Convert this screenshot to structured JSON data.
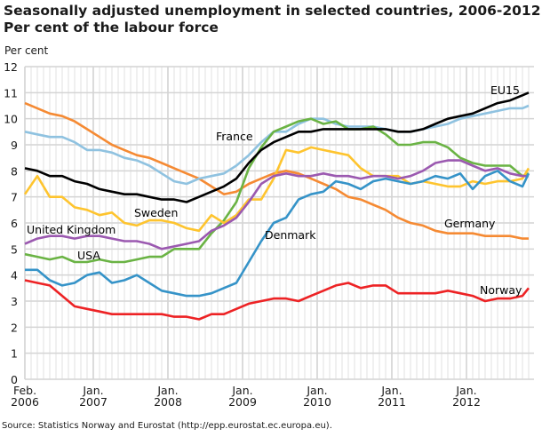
{
  "chart_data": {
    "type": "line",
    "title": "Seasonally adjusted unemployment in selected countries, 2006-2012.",
    "subtitle": "Per cent of the labour force",
    "ylabel": "Per cent",
    "xlabel": "",
    "ylim": [
      0,
      12
    ],
    "yticks": [
      "0",
      "1",
      "2",
      "3",
      "4",
      "5",
      "6",
      "7",
      "8",
      "9",
      "10",
      "11",
      "12"
    ],
    "xticks": [
      {
        "line1": "Feb.",
        "line2": "2006",
        "month": 0
      },
      {
        "line1": "Jan.",
        "line2": "2007",
        "month": 11
      },
      {
        "line1": "Jan.",
        "line2": "2008",
        "month": 23
      },
      {
        "line1": "Jan.",
        "line2": "2009",
        "month": 35
      },
      {
        "line1": "Jan.",
        "line2": "2010",
        "month": 47
      },
      {
        "line1": "Jan.",
        "line2": "2011",
        "month": 59
      },
      {
        "line1": "Jan.",
        "line2": "2012",
        "month": 71
      }
    ],
    "grid": true,
    "x": [
      "2006-02",
      "2006-04",
      "2006-06",
      "2006-08",
      "2006-10",
      "2006-12",
      "2007-02",
      "2007-04",
      "2007-06",
      "2007-08",
      "2007-10",
      "2007-12",
      "2008-02",
      "2008-04",
      "2008-06",
      "2008-08",
      "2008-10",
      "2008-12",
      "2009-02",
      "2009-04",
      "2009-06",
      "2009-08",
      "2009-10",
      "2009-12",
      "2010-02",
      "2010-04",
      "2010-06",
      "2010-08",
      "2010-10",
      "2010-12",
      "2011-02",
      "2011-04",
      "2011-06",
      "2011-08",
      "2011-10",
      "2011-12",
      "2012-02",
      "2012-04",
      "2012-06",
      "2012-08",
      "2012-10",
      "2012-11"
    ],
    "series": [
      {
        "name": "Germany",
        "color": "#f58a33",
        "values": [
          10.6,
          10.4,
          10.2,
          10.1,
          9.9,
          9.6,
          9.3,
          9.0,
          8.8,
          8.6,
          8.5,
          8.3,
          8.1,
          7.9,
          7.7,
          7.4,
          7.1,
          7.2,
          7.5,
          7.7,
          7.9,
          8.0,
          7.9,
          7.7,
          7.5,
          7.3,
          7.0,
          6.9,
          6.7,
          6.5,
          6.2,
          6.0,
          5.9,
          5.7,
          5.6,
          5.6,
          5.6,
          5.5,
          5.5,
          5.5,
          5.4,
          5.4
        ]
      },
      {
        "name": "France",
        "color": "#8fc2e0",
        "values": [
          9.5,
          9.4,
          9.3,
          9.3,
          9.1,
          8.8,
          8.8,
          8.7,
          8.5,
          8.4,
          8.2,
          7.9,
          7.6,
          7.5,
          7.7,
          7.8,
          7.9,
          8.2,
          8.6,
          9.1,
          9.5,
          9.5,
          9.8,
          10.0,
          10.0,
          9.8,
          9.7,
          9.7,
          9.7,
          9.6,
          9.5,
          9.5,
          9.6,
          9.7,
          9.8,
          10.0,
          10.1,
          10.2,
          10.3,
          10.4,
          10.4,
          10.5
        ]
      },
      {
        "name": "USA",
        "color": "#6ab344",
        "values": [
          4.8,
          4.7,
          4.6,
          4.7,
          4.5,
          4.5,
          4.6,
          4.5,
          4.5,
          4.6,
          4.7,
          4.7,
          5.0,
          5.0,
          5.0,
          5.6,
          6.1,
          6.8,
          8.1,
          8.9,
          9.5,
          9.7,
          9.9,
          10.0,
          9.8,
          9.9,
          9.6,
          9.6,
          9.7,
          9.4,
          9.0,
          9.0,
          9.1,
          9.1,
          8.9,
          8.5,
          8.3,
          8.2,
          8.2,
          8.2,
          7.8,
          7.9
        ]
      },
      {
        "name": "Sweden",
        "color": "#fec42e",
        "values": [
          7.1,
          7.8,
          7.0,
          7.0,
          6.6,
          6.5,
          6.3,
          6.4,
          6.0,
          5.9,
          6.1,
          6.1,
          6.0,
          5.8,
          5.7,
          6.3,
          6.0,
          6.3,
          6.9,
          6.9,
          7.7,
          8.8,
          8.7,
          8.9,
          8.8,
          8.7,
          8.6,
          8.1,
          7.8,
          7.8,
          7.8,
          7.5,
          7.6,
          7.5,
          7.4,
          7.4,
          7.6,
          7.5,
          7.6,
          7.6,
          7.7,
          8.1
        ]
      },
      {
        "name": "United Kingdom",
        "color": "#9b59b0",
        "values": [
          5.2,
          5.4,
          5.5,
          5.5,
          5.4,
          5.5,
          5.5,
          5.4,
          5.3,
          5.3,
          5.2,
          5.0,
          5.1,
          5.2,
          5.3,
          5.7,
          5.9,
          6.2,
          6.8,
          7.5,
          7.8,
          7.9,
          7.8,
          7.8,
          7.9,
          7.8,
          7.8,
          7.7,
          7.8,
          7.8,
          7.7,
          7.8,
          8.0,
          8.3,
          8.4,
          8.4,
          8.2,
          8.0,
          8.1,
          7.9,
          7.8,
          7.8
        ]
      },
      {
        "name": "Denmark",
        "color": "#3593c8",
        "values": [
          4.2,
          4.2,
          3.8,
          3.6,
          3.7,
          4.0,
          4.1,
          3.7,
          3.8,
          4.0,
          3.7,
          3.4,
          3.3,
          3.2,
          3.2,
          3.3,
          3.5,
          3.7,
          4.5,
          5.3,
          6.0,
          6.2,
          6.9,
          7.1,
          7.2,
          7.6,
          7.5,
          7.3,
          7.6,
          7.7,
          7.6,
          7.5,
          7.6,
          7.8,
          7.7,
          7.9,
          7.3,
          7.8,
          8.0,
          7.6,
          7.4,
          7.9
        ]
      },
      {
        "name": "EU15",
        "color": "#000000",
        "values": [
          8.1,
          8.0,
          7.8,
          7.8,
          7.6,
          7.5,
          7.3,
          7.2,
          7.1,
          7.1,
          7.0,
          6.9,
          6.9,
          6.8,
          7.0,
          7.2,
          7.4,
          7.7,
          8.3,
          8.8,
          9.1,
          9.3,
          9.5,
          9.5,
          9.6,
          9.6,
          9.6,
          9.6,
          9.6,
          9.6,
          9.5,
          9.5,
          9.6,
          9.8,
          10.0,
          10.1,
          10.2,
          10.4,
          10.6,
          10.7,
          10.9,
          11.0
        ]
      },
      {
        "name": "Norway",
        "color": "#ed2224",
        "values": [
          3.8,
          3.7,
          3.6,
          3.2,
          2.8,
          2.7,
          2.6,
          2.5,
          2.5,
          2.5,
          2.5,
          2.5,
          2.4,
          2.4,
          2.3,
          2.5,
          2.5,
          2.7,
          2.9,
          3.0,
          3.1,
          3.1,
          3.0,
          3.2,
          3.4,
          3.6,
          3.7,
          3.5,
          3.6,
          3.6,
          3.3,
          3.3,
          3.3,
          3.3,
          3.4,
          3.3,
          3.2,
          3.0,
          3.1,
          3.1,
          3.2,
          3.5
        ]
      }
    ],
    "series_labels": [
      "France",
      "EU15",
      "Sweden",
      "United Kingdom",
      "USA",
      "Denmark",
      "Germany",
      "Norway"
    ],
    "legend": "inline labels",
    "source": "Source: Statistics Norway and Eurostat (http://epp.eurostat.ec.europa.eu)."
  }
}
